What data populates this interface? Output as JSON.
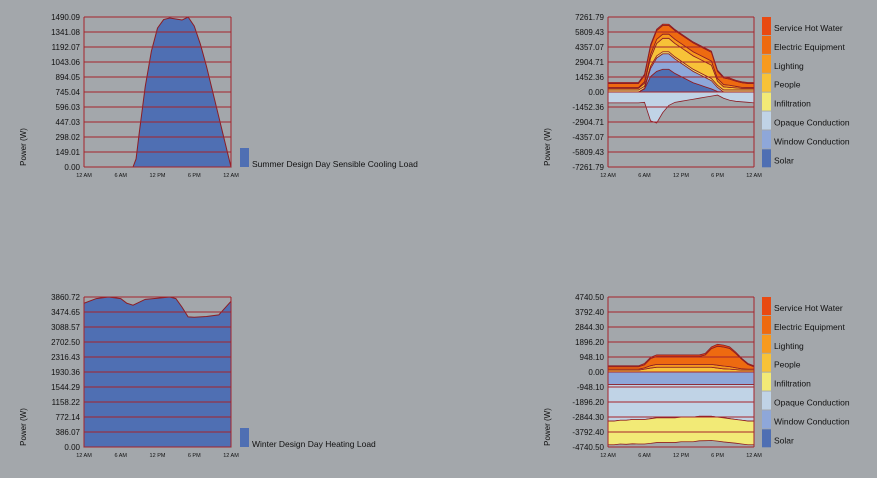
{
  "colors": {
    "background": "#a3a7ab",
    "gridline": "#a6232b",
    "single_fill": "#4f6fb3"
  },
  "chart_data": [
    {
      "type": "area",
      "ylabel": "Power (W)",
      "xticks": [
        "12 AM",
        "6 AM",
        "12 PM",
        "6 PM",
        "12 AM"
      ],
      "yticks": [
        "1490.09",
        "1341.08",
        "1192.07",
        "1043.06",
        "894.05",
        "745.04",
        "596.03",
        "447.03",
        "298.02",
        "149.01",
        "0.00"
      ],
      "ylim": [
        0,
        1490.09
      ],
      "grid": true,
      "legend_placement": "right",
      "series": [
        {
          "name": "Summer Design Day Sensible Cooling Load",
          "color": "#4f6fb3",
          "x": [
            0,
            8,
            8.5,
            9,
            10,
            11,
            12,
            13,
            14,
            15,
            16,
            17,
            18,
            19,
            20,
            21,
            22,
            23,
            24
          ],
          "values": [
            0,
            0,
            80,
            330,
            800,
            1150,
            1380,
            1465,
            1480,
            1470,
            1460,
            1490,
            1400,
            1220,
            1000,
            750,
            500,
            250,
            0
          ]
        }
      ]
    },
    {
      "type": "area",
      "stacked": true,
      "ylabel": "Power (W)",
      "xticks": [
        "12 AM",
        "6 AM",
        "12 PM",
        "6 PM",
        "12 AM"
      ],
      "yticks": [
        "7261.79",
        "5809.43",
        "4357.07",
        "2904.71",
        "1452.36",
        "0.00",
        "-1452.36",
        "-2904.71",
        "-4357.07",
        "-5809.43",
        "-7261.79"
      ],
      "ylim": [
        -7261.79,
        7261.79
      ],
      "grid": true,
      "legend_placement": "right",
      "series": [
        {
          "name": "Service Hot Water",
          "color": "#e84a12",
          "values": [
            90,
            90,
            90,
            90,
            90,
            90,
            120,
            140,
            130,
            120,
            110,
            100,
            100,
            100,
            100,
            100,
            100,
            100,
            110,
            110,
            100,
            90,
            90,
            90,
            90
          ]
        },
        {
          "name": "Electric Equipment",
          "color": "#ee6a10",
          "values": [
            400,
            400,
            400,
            400,
            400,
            400,
            600,
            800,
            850,
            850,
            850,
            850,
            850,
            850,
            850,
            850,
            850,
            850,
            700,
            650,
            600,
            500,
            450,
            400,
            400
          ]
        },
        {
          "name": "Lighting",
          "color": "#f79a1e",
          "values": [
            80,
            80,
            80,
            80,
            80,
            80,
            150,
            350,
            400,
            400,
            400,
            400,
            400,
            400,
            400,
            400,
            400,
            400,
            250,
            220,
            200,
            150,
            100,
            80,
            80
          ]
        },
        {
          "name": "People",
          "color": "#f7c238",
          "values": [
            150,
            150,
            150,
            150,
            150,
            150,
            300,
            800,
            1200,
            1300,
            1300,
            1300,
            1300,
            1300,
            1300,
            1300,
            1300,
            1300,
            400,
            300,
            250,
            200,
            150,
            150,
            150
          ]
        },
        {
          "name": "Infiltration",
          "color": "#f2ea76",
          "values": [
            200,
            200,
            200,
            200,
            200,
            200,
            200,
            200,
            200,
            200,
            200,
            200,
            200,
            200,
            200,
            200,
            200,
            200,
            200,
            200,
            200,
            200,
            200,
            200,
            200
          ]
        },
        {
          "name": "Opaque Conduction",
          "color": "#c0d3e6",
          "values": [
            -1050,
            -1050,
            -1050,
            -1050,
            -1050,
            -1050,
            -1000,
            -2800,
            -3000,
            -2000,
            -1300,
            -1000,
            -900,
            -800,
            -700,
            -600,
            -500,
            -400,
            -300,
            -600,
            -800,
            -900,
            -950,
            -1000,
            -1050
          ]
        },
        {
          "name": "Window Conduction",
          "color": "#8ea7d9",
          "values": [
            0,
            0,
            0,
            0,
            0,
            0,
            50,
            800,
            1300,
            1500,
            1500,
            1400,
            1300,
            1200,
            1100,
            1000,
            900,
            800,
            400,
            0,
            0,
            0,
            0,
            0,
            0
          ]
        },
        {
          "name": "Solar",
          "color": "#4f6fb3",
          "values": [
            0,
            0,
            0,
            0,
            0,
            0,
            300,
            1500,
            2000,
            2200,
            2200,
            1800,
            1500,
            1200,
            900,
            700,
            500,
            300,
            50,
            0,
            0,
            0,
            0,
            0,
            0
          ]
        }
      ]
    },
    {
      "type": "area",
      "ylabel": "Power (W)",
      "xticks": [
        "12 AM",
        "6 AM",
        "12 PM",
        "6 PM",
        "12 AM"
      ],
      "yticks": [
        "3860.72",
        "3474.65",
        "3088.57",
        "2702.50",
        "2316.43",
        "1930.36",
        "1544.29",
        "1158.22",
        "772.14",
        "386.07",
        "0.00"
      ],
      "ylim": [
        0,
        3860.72
      ],
      "grid": true,
      "legend_placement": "right",
      "series": [
        {
          "name": "Winter Design Day Heating Load",
          "color": "#4f6fb3",
          "x": [
            0,
            2,
            4,
            6,
            7,
            8,
            10,
            12,
            14,
            15,
            16,
            17,
            18,
            20,
            22,
            24
          ],
          "values": [
            3700,
            3820,
            3860,
            3820,
            3700,
            3650,
            3800,
            3830,
            3860,
            3820,
            3600,
            3350,
            3340,
            3360,
            3400,
            3750
          ]
        }
      ]
    },
    {
      "type": "area",
      "stacked": true,
      "ylabel": "Power (W)",
      "xticks": [
        "12 AM",
        "6 AM",
        "12 PM",
        "6 PM",
        "12 AM"
      ],
      "yticks": [
        "4740.50",
        "3792.40",
        "2844.30",
        "1896.20",
        "948.10",
        "0.00",
        "-948.10",
        "-1896.20",
        "-2844.30",
        "-3792.40",
        "-4740.50"
      ],
      "ylim": [
        -4740.5,
        4740.5
      ],
      "grid": true,
      "legend_placement": "right",
      "series": [
        {
          "name": "Service Hot Water",
          "color": "#e84a12",
          "values": [
            60,
            60,
            60,
            60,
            60,
            60,
            80,
            80,
            100,
            100,
            100,
            100,
            100,
            100,
            100,
            100,
            100,
            100,
            120,
            120,
            100,
            80,
            60,
            60,
            60
          ]
        },
        {
          "name": "Electric Equipment",
          "color": "#ee6a10",
          "values": [
            150,
            150,
            150,
            150,
            150,
            150,
            200,
            450,
            500,
            500,
            500,
            500,
            500,
            500,
            500,
            500,
            600,
            1000,
            1200,
            1200,
            1150,
            900,
            600,
            300,
            150
          ]
        },
        {
          "name": "Lighting",
          "color": "#f79a1e",
          "values": [
            60,
            60,
            60,
            60,
            60,
            60,
            80,
            150,
            180,
            180,
            180,
            180,
            180,
            180,
            180,
            180,
            180,
            180,
            180,
            180,
            160,
            120,
            80,
            60,
            60
          ]
        },
        {
          "name": "People",
          "color": "#f7c238",
          "values": [
            120,
            120,
            120,
            120,
            120,
            120,
            180,
            250,
            300,
            300,
            300,
            300,
            300,
            300,
            300,
            300,
            300,
            300,
            250,
            200,
            180,
            150,
            120,
            120,
            120
          ]
        },
        {
          "name": "Infiltration",
          "color": "#f2ea76",
          "values": [
            -1500,
            -1500,
            -1500,
            -1520,
            -1540,
            -1550,
            -1550,
            -1560,
            -1560,
            -1560,
            -1560,
            -1560,
            -1560,
            -1560,
            -1560,
            -1550,
            -1540,
            -1530,
            -1520,
            -1520,
            -1510,
            -1500,
            -1500,
            -1500,
            -1500
          ]
        },
        {
          "name": "Opaque Conduction",
          "color": "#c0d3e6",
          "values": [
            -2300,
            -2300,
            -2250,
            -2250,
            -2200,
            -2200,
            -2200,
            -2150,
            -2100,
            -2100,
            -2100,
            -2100,
            -2050,
            -2050,
            -2050,
            -2000,
            -2000,
            -2000,
            -2050,
            -2100,
            -2150,
            -2200,
            -2250,
            -2300,
            -2300
          ]
        },
        {
          "name": "Window Conduction",
          "color": "#8ea7d9",
          "values": [
            -800,
            -800,
            -800,
            -800,
            -800,
            -800,
            -800,
            -800,
            -800,
            -800,
            -800,
            -800,
            -800,
            -800,
            -800,
            -800,
            -800,
            -800,
            -800,
            -800,
            -800,
            -800,
            -800,
            -800,
            -800
          ]
        },
        {
          "name": "Solar",
          "color": "#4f6fb3",
          "values": [
            0,
            0,
            0,
            0,
            0,
            0,
            0,
            0,
            0,
            0,
            0,
            0,
            0,
            0,
            0,
            0,
            0,
            0,
            0,
            0,
            0,
            0,
            0,
            0,
            0
          ]
        }
      ]
    }
  ]
}
